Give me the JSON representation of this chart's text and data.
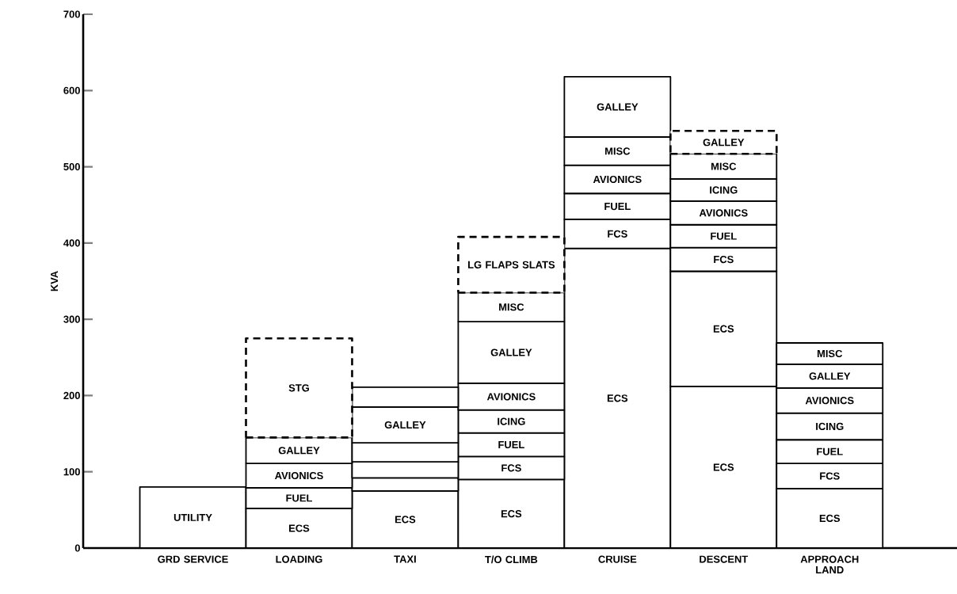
{
  "chart_data": {
    "type": "bar",
    "stacked": true,
    "ylabel": "KVA",
    "categories": [
      "GRD SERVICE",
      "LOADING",
      "TAXI",
      "T/O CLIMB",
      "CRUISE",
      "DESCENT",
      "APPROACH LAND"
    ],
    "ylim": [
      0,
      700
    ],
    "yticks": [
      0,
      100,
      200,
      300,
      400,
      500,
      600,
      700
    ],
    "series": [
      {
        "color": "#ffffff",
        "values": [
          80,
          52,
          75,
          90,
          393,
          212,
          78
        ],
        "value_labels": [
          "UTILITY",
          "ECS",
          "ECS",
          "ECS",
          "ECS",
          "ECS",
          "ECS"
        ]
      },
      {
        "color": "#ffffff",
        "values": [
          null,
          27,
          17,
          30,
          38,
          151,
          33
        ],
        "value_labels": [
          null,
          "FUEL",
          null,
          "FCS",
          "FCS",
          "ECS",
          "FCS"
        ]
      },
      {
        "color": "#ffffff",
        "values": [
          null,
          32,
          21,
          31,
          34,
          31,
          31
        ],
        "value_labels": [
          null,
          "AVIONICS",
          null,
          "FUEL",
          "FUEL",
          "FCS",
          "FUEL"
        ]
      },
      {
        "color": "#ffffff",
        "values": [
          null,
          34,
          25,
          30,
          37,
          30,
          35
        ],
        "value_labels": [
          null,
          "GALLEY",
          null,
          "ICING",
          "AVIONICS",
          "FUEL",
          "ICING"
        ]
      },
      {
        "color": "#ffffff",
        "values": [
          null,
          null,
          47,
          35,
          37,
          31,
          33
        ],
        "value_labels": [
          null,
          null,
          "GALLEY",
          "AVIONICS",
          "MISC",
          "AVIONICS",
          "AVIONICS"
        ]
      },
      {
        "color": "#ffffff",
        "values": [
          null,
          null,
          26,
          81,
          79,
          29,
          31
        ],
        "value_labels": [
          null,
          null,
          null,
          "GALLEY",
          "GALLEY",
          "ICING",
          "GALLEY"
        ]
      },
      {
        "color": "#ffffff",
        "values": [
          null,
          null,
          null,
          38,
          null,
          33,
          28
        ],
        "value_labels": [
          null,
          null,
          null,
          "MISC",
          null,
          "MISC",
          "MISC"
        ]
      },
      {
        "color": "#ffffff",
        "line_style": "dashed",
        "values": [
          null,
          130,
          null,
          73,
          null,
          30,
          null
        ],
        "value_labels": [
          null,
          "STG",
          null,
          "LG FLAPS SLATS",
          null,
          "GALLEY",
          null
        ]
      }
    ]
  }
}
